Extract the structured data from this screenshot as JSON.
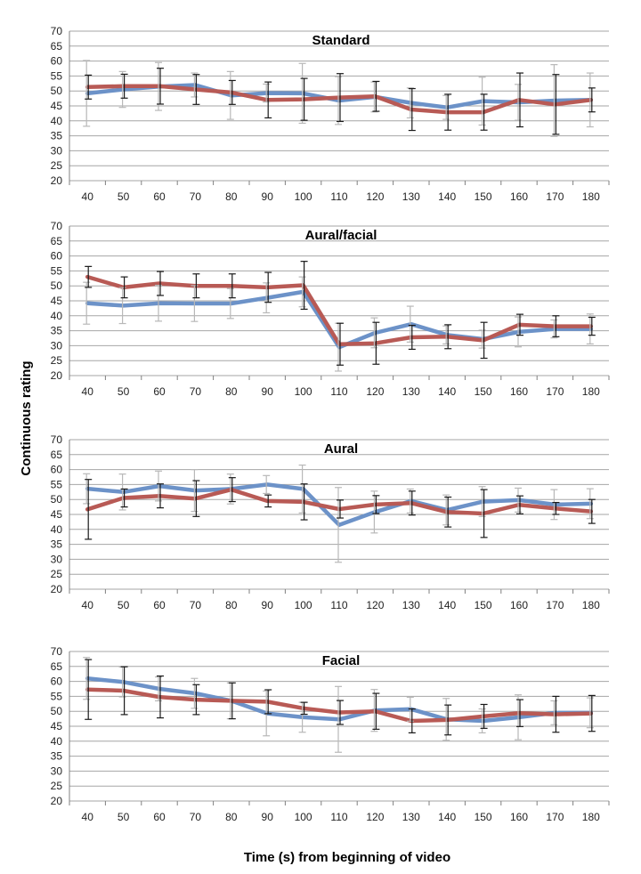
{
  "chart_data": {
    "type": "line",
    "ylabel": "Continuous rating",
    "xlabel": "Time (s) from beginning of video",
    "colors": {
      "series_a": "#6c92c8",
      "series_b": "#b85a55",
      "errbar_a": "#b8b8b8",
      "errbar_b": "#1a1a1a",
      "grid": "#a6a6a6"
    },
    "x": [
      40,
      50,
      60,
      70,
      80,
      90,
      100,
      110,
      120,
      130,
      140,
      150,
      160,
      170,
      180
    ],
    "yticks": [
      20,
      25,
      30,
      35,
      40,
      45,
      50,
      55,
      60,
      65,
      70
    ],
    "ylim": [
      20,
      70
    ],
    "panels": [
      {
        "title": "Standard",
        "series": [
          {
            "name": "blue",
            "values": [
              49.2,
              50.5,
              51.5,
              52.0,
              48.5,
              49.3,
              49.2,
              46.8,
              48.0,
              46.0,
              44.5,
              46.6,
              46.2,
              46.8,
              47.0
            ],
            "err": [
              11,
              6,
              8,
              4,
              8,
              3,
              10,
              8,
              5,
              5,
              4,
              8,
              6,
              12,
              9
            ]
          },
          {
            "name": "red",
            "values": [
              51.3,
              51.6,
              51.6,
              50.5,
              49.5,
              47.0,
              47.2,
              47.8,
              48.2,
              43.8,
              42.9,
              42.9,
              47.0,
              45.5,
              47.0
            ],
            "err": [
              4,
              4,
              6,
              5,
              4,
              6,
              7,
              8,
              5,
              7,
              6,
              6,
              9,
              10,
              4
            ]
          }
        ]
      },
      {
        "title": "Aural/facial",
        "series": [
          {
            "name": "blue",
            "values": [
              44.2,
              43.4,
              44.2,
              44.1,
              44.1,
              46.0,
              48.0,
              29.5,
              34.3,
              37.2,
              33.6,
              32.2,
              34.6,
              35.6,
              35.6
            ],
            "err": [
              7,
              6,
              6,
              6,
              5,
              5,
              5,
              8,
              5,
              6,
              3,
              3,
              5,
              3,
              5
            ]
          },
          {
            "name": "red",
            "values": [
              53.0,
              49.5,
              50.8,
              50.0,
              50.0,
              49.5,
              50.2,
              30.5,
              30.8,
              32.8,
              33.0,
              31.8,
              37.0,
              36.5,
              36.5
            ],
            "err": [
              3.5,
              3.5,
              4,
              4,
              4,
              5,
              8,
              7,
              7,
              4,
              4,
              6,
              3.5,
              3.5,
              3
            ]
          }
        ]
      },
      {
        "title": "Aural",
        "series": [
          {
            "name": "blue",
            "values": [
              53.6,
              52.5,
              54.5,
              53.0,
              53.5,
              55.0,
              53.5,
              41.5,
              45.8,
              49.5,
              46.5,
              49.3,
              49.8,
              48.3,
              48.6
            ],
            "err": [
              5,
              6,
              5,
              7,
              5,
              3,
              8,
              12.5,
              7,
              4,
              5,
              5,
              4,
              5,
              5
            ]
          },
          {
            "name": "red",
            "values": [
              46.7,
              50.5,
              51.2,
              50.3,
              53.3,
              49.5,
              49.2,
              46.8,
              48.3,
              48.8,
              45.8,
              45.3,
              48.2,
              47.0,
              46.0
            ],
            "err": [
              10,
              3,
              4,
              6,
              4,
              2,
              6,
              3,
              3,
              4,
              5,
              8,
              3,
              2,
              4
            ]
          }
        ]
      },
      {
        "title": "Facial",
        "series": [
          {
            "name": "blue",
            "values": [
              61.0,
              59.8,
              57.5,
              56.0,
              53.5,
              49.3,
              48.0,
              47.3,
              50.3,
              50.7,
              47.3,
              46.8,
              48.0,
              49.5,
              49.5
            ],
            "err": [
              7,
              5,
              4,
              5,
              6,
              7.5,
              5,
              11,
              7,
              4,
              7,
              4,
              7.5,
              4,
              5
            ]
          },
          {
            "name": "red",
            "values": [
              57.3,
              56.9,
              54.8,
              53.9,
              53.5,
              53.2,
              51.0,
              49.6,
              50.0,
              46.8,
              47.1,
              48.3,
              49.4,
              49.0,
              49.3
            ],
            "err": [
              10,
              8,
              7,
              5,
              6,
              4,
              2,
              4,
              6,
              4,
              5,
              4,
              4.5,
              6,
              6
            ]
          }
        ]
      }
    ]
  }
}
